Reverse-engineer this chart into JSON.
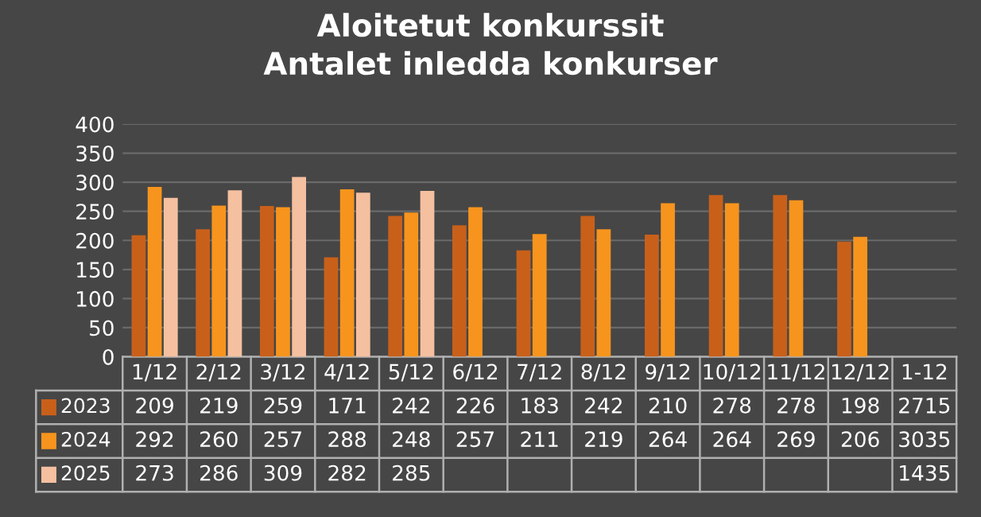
{
  "chart_data": {
    "type": "bar",
    "title": "Aloitetut konkurssit\nAntalet inledda konkurser",
    "categories": [
      "1/12",
      "2/12",
      "3/12",
      "4/12",
      "5/12",
      "6/12",
      "7/12",
      "8/12",
      "9/12",
      "10/12",
      "11/12",
      "12/12",
      "1-12"
    ],
    "series": [
      {
        "name": "2023",
        "color": "#c8601a",
        "values": [
          209,
          219,
          259,
          171,
          242,
          226,
          183,
          242,
          210,
          278,
          278,
          198,
          null
        ],
        "value_labels": [
          "209",
          "219",
          "259",
          "171",
          "242",
          "226",
          "183",
          "242",
          "210",
          "278",
          "278",
          "198",
          "2715"
        ]
      },
      {
        "name": "2024",
        "color": "#f7941d",
        "values": [
          292,
          260,
          257,
          288,
          248,
          257,
          211,
          219,
          264,
          264,
          269,
          206,
          null
        ],
        "value_labels": [
          "292",
          "260",
          "257",
          "288",
          "248",
          "257",
          "211",
          "219",
          "264",
          "264",
          "269",
          "206",
          "3035"
        ]
      },
      {
        "name": "2025",
        "color": "#f5c0a0",
        "values": [
          273,
          286,
          309,
          282,
          285,
          null,
          null,
          null,
          null,
          null,
          null,
          null,
          null
        ],
        "value_labels": [
          "273",
          "286",
          "309",
          "282",
          "285",
          null,
          null,
          null,
          null,
          null,
          null,
          null,
          "1435"
        ]
      }
    ],
    "ylim": [
      0,
      400
    ],
    "yticks": [
      0,
      50,
      100,
      150,
      200,
      250,
      300,
      350,
      400
    ],
    "grid": "y",
    "legend": "bottom"
  }
}
